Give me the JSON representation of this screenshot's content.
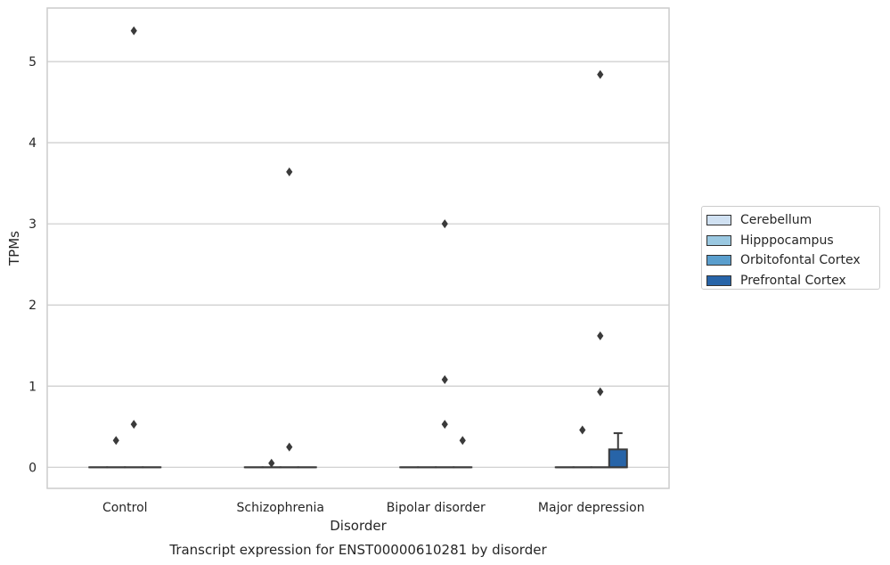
{
  "chart_data": {
    "type": "box",
    "title": "Transcript expression for ENST00000610281 by disorder",
    "xlabel": "Disorder",
    "ylabel": "TPMs",
    "ylim": [
      -0.26,
      5.66
    ],
    "yticks": [
      0,
      1,
      2,
      3,
      4,
      5
    ],
    "grid": true,
    "legend_position": "right",
    "categories": [
      "Control",
      "Schizophrenia",
      "Bipolar disorder",
      "Major depression"
    ],
    "series": [
      {
        "name": "Cerebellum",
        "color": "#d0e1f2"
      },
      {
        "name": "Hipppocampus",
        "color": "#9ac8e1"
      },
      {
        "name": "Orbitofontal Cortex",
        "color": "#5a9ecd"
      },
      {
        "name": "Prefrontal Cortex",
        "color": "#2764a8"
      }
    ],
    "boxes": [
      {
        "category": 0,
        "series": 0,
        "q1": 0,
        "median": 0,
        "q3": 0,
        "whisker_low": 0,
        "whisker_high": 0
      },
      {
        "category": 0,
        "series": 1,
        "q1": 0,
        "median": 0,
        "q3": 0,
        "whisker_low": 0,
        "whisker_high": 0,
        "outliers": [
          0.33
        ]
      },
      {
        "category": 0,
        "series": 2,
        "q1": 0,
        "median": 0,
        "q3": 0,
        "whisker_low": 0,
        "whisker_high": 0,
        "outliers": [
          5.38,
          0.53
        ]
      },
      {
        "category": 0,
        "series": 3,
        "q1": 0,
        "median": 0,
        "q3": 0,
        "whisker_low": 0,
        "whisker_high": 0
      },
      {
        "category": 1,
        "series": 0,
        "q1": 0,
        "median": 0,
        "q3": 0,
        "whisker_low": 0,
        "whisker_high": 0
      },
      {
        "category": 1,
        "series": 1,
        "q1": 0,
        "median": 0,
        "q3": 0,
        "whisker_low": 0,
        "whisker_high": 0,
        "outliers": [
          0.05
        ]
      },
      {
        "category": 1,
        "series": 2,
        "q1": 0,
        "median": 0,
        "q3": 0,
        "whisker_low": 0,
        "whisker_high": 0,
        "outliers": [
          3.64,
          0.25
        ]
      },
      {
        "category": 1,
        "series": 3,
        "q1": 0,
        "median": 0,
        "q3": 0,
        "whisker_low": 0,
        "whisker_high": 0
      },
      {
        "category": 2,
        "series": 0,
        "q1": 0,
        "median": 0,
        "q3": 0,
        "whisker_low": 0,
        "whisker_high": 0
      },
      {
        "category": 2,
        "series": 1,
        "q1": 0,
        "median": 0,
        "q3": 0,
        "whisker_low": 0,
        "whisker_high": 0
      },
      {
        "category": 2,
        "series": 2,
        "q1": 0,
        "median": 0,
        "q3": 0,
        "whisker_low": 0,
        "whisker_high": 0,
        "outliers": [
          3.0,
          1.08,
          0.53
        ]
      },
      {
        "category": 2,
        "series": 3,
        "q1": 0,
        "median": 0,
        "q3": 0,
        "whisker_low": 0,
        "whisker_high": 0,
        "outliers": [
          0.33
        ]
      },
      {
        "category": 3,
        "series": 0,
        "q1": 0,
        "median": 0,
        "q3": 0,
        "whisker_low": 0,
        "whisker_high": 0
      },
      {
        "category": 3,
        "series": 1,
        "q1": 0,
        "median": 0,
        "q3": 0,
        "whisker_low": 0,
        "whisker_high": 0,
        "outliers": [
          0.46
        ]
      },
      {
        "category": 3,
        "series": 2,
        "q1": 0,
        "median": 0,
        "q3": 0,
        "whisker_low": 0,
        "whisker_high": 0,
        "outliers": [
          4.84,
          1.62,
          0.93
        ]
      },
      {
        "category": 3,
        "series": 3,
        "q1": 0,
        "median": 0,
        "q3": 0.22,
        "whisker_low": 0,
        "whisker_high": 0.42
      }
    ]
  }
}
